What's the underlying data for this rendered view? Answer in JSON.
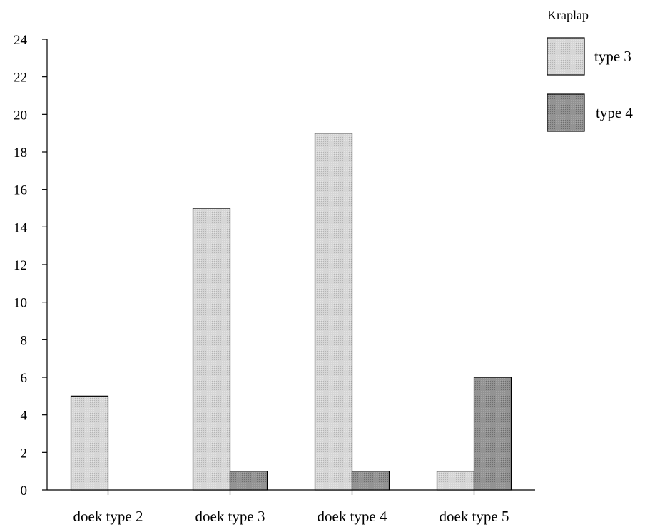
{
  "chart_data": {
    "type": "bar",
    "categories": [
      "doek type 2",
      "doek type 3",
      "doek type 4",
      "doek type 5"
    ],
    "series": [
      {
        "name": "type 3",
        "values": [
          5,
          15,
          19,
          1
        ],
        "color": "#cfcfcf"
      },
      {
        "name": "type 4",
        "values": [
          0,
          1,
          1,
          6
        ],
        "color": "#8f8f8f"
      }
    ],
    "ylim": [
      0,
      24
    ],
    "yticks": [
      "0",
      "2",
      "4",
      "6",
      "8",
      "10",
      "12",
      "14",
      "16",
      "18",
      "20",
      "22",
      "24"
    ],
    "legend": {
      "title": "Kraplap",
      "position": "top-right"
    },
    "grid": false
  }
}
